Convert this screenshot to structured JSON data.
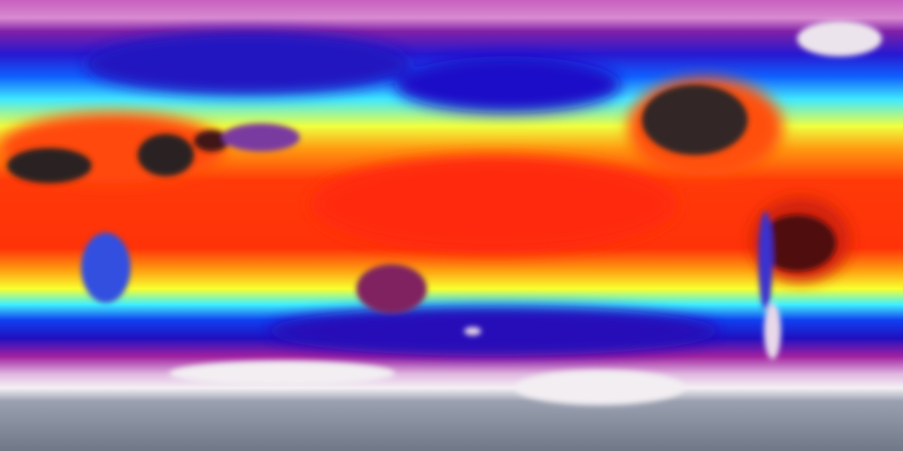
{
  "map": {
    "projection": "equirectangular",
    "type": "global surface temperature heatmap",
    "colors": {
      "cold_polar": "#7a8090",
      "ice_white": "#f2eef2",
      "magenta": "#b030a8",
      "deep_blue": "#1a10d0",
      "blue": "#1060ff",
      "cyan": "#40f0ff",
      "yellow": "#f8ff30",
      "orange": "#ff9a10",
      "red": "#ff2a08",
      "dark_hot": "#2a2020"
    }
  }
}
